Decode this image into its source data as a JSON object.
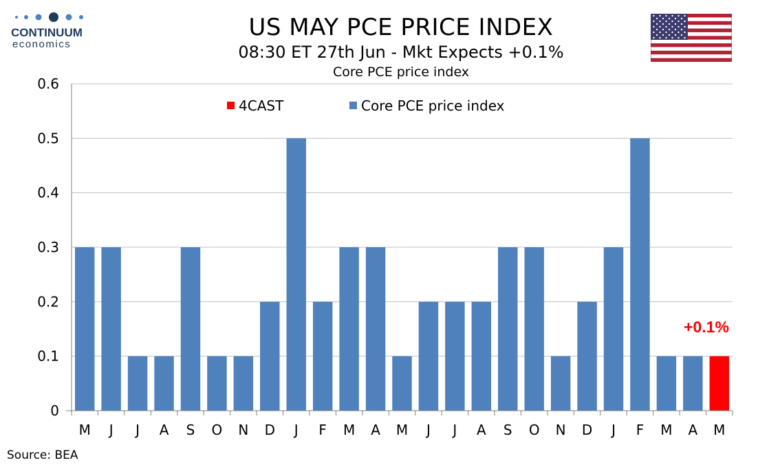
{
  "brand": {
    "name": "CONTINUUM",
    "sub": "economics"
  },
  "header": {
    "title": "US MAY PCE PRICE INDEX",
    "subtitle": "08:30 ET 27th Jun - Mkt Expects +0.1%"
  },
  "source": "Source: BEA",
  "colors": {
    "actual": "#4f81bd",
    "forecast": "#ff0000",
    "grid": "#c0c0c0",
    "brand": "#1f3a5f"
  },
  "chart_data": {
    "type": "bar",
    "title": "Core PCE price index",
    "categories": [
      "M",
      "J",
      "J",
      "A",
      "S",
      "O",
      "N",
      "D",
      "J",
      "F",
      "M",
      "A",
      "M",
      "J",
      "J",
      "A",
      "S",
      "O",
      "N",
      "D",
      "J",
      "F",
      "M",
      "A",
      "M"
    ],
    "series": [
      {
        "name": "Core PCE price index",
        "values": [
          0.3,
          0.3,
          0.1,
          0.1,
          0.3,
          0.1,
          0.1,
          0.2,
          0.5,
          0.2,
          0.3,
          0.3,
          0.1,
          0.2,
          0.2,
          0.2,
          0.3,
          0.3,
          0.1,
          0.2,
          0.3,
          0.5,
          0.1,
          0.1,
          null
        ]
      },
      {
        "name": "4CAST",
        "values": [
          null,
          null,
          null,
          null,
          null,
          null,
          null,
          null,
          null,
          null,
          null,
          null,
          null,
          null,
          null,
          null,
          null,
          null,
          null,
          null,
          null,
          null,
          null,
          null,
          0.1
        ]
      }
    ],
    "yticks": [
      "0",
      "0.1",
      "0.2",
      "0.3",
      "0.4",
      "0.5",
      "0.6"
    ],
    "ylim": [
      0,
      0.6
    ],
    "annotation": "+0.1%",
    "legend": "top",
    "grid": true
  }
}
